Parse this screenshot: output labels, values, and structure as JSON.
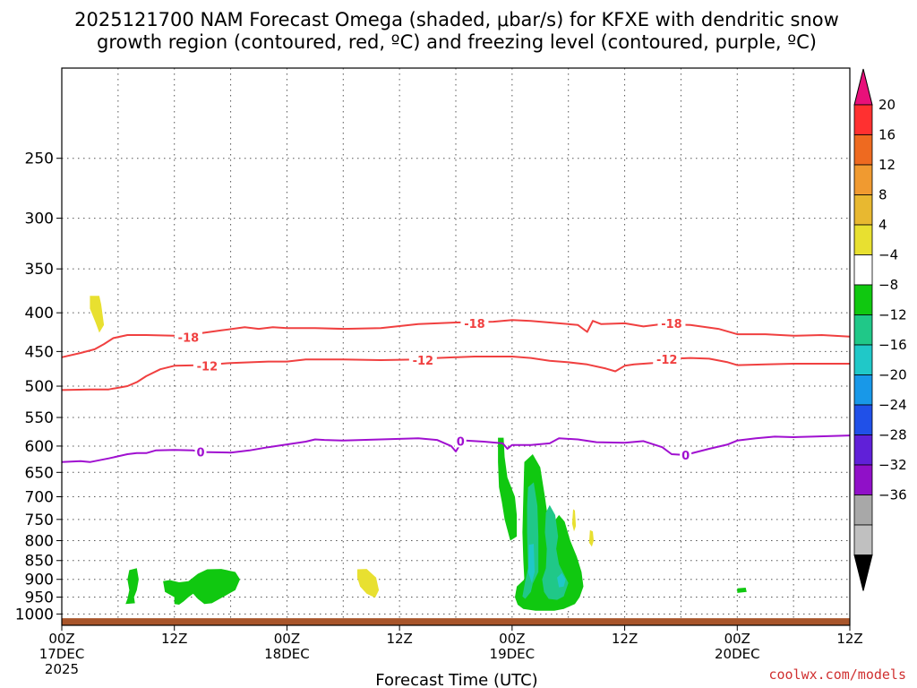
{
  "chart_data": {
    "type": "time-height contour",
    "title_line1": "2025121700 NAM Forecast Omega (shaded, μbar/s) for KFXE with dendritic snow",
    "title_line2": "growth region (contoured, red, ºC) and freezing level (contoured, purple, ºC)",
    "xlabel": "Forecast Time (UTC)",
    "credit": "coolwx.com/models",
    "x_range_hours": [
      0,
      84
    ],
    "y_range_hPa": [
      1035,
      190
    ],
    "y_ticks": [
      250,
      300,
      350,
      400,
      450,
      500,
      550,
      600,
      650,
      700,
      750,
      800,
      850,
      900,
      950,
      1000
    ],
    "x_ticks": [
      {
        "h": 0,
        "l1": "00Z",
        "l2": "17DEC",
        "l3": "2025"
      },
      {
        "h": 12,
        "l1": "12Z",
        "l2": "",
        "l3": ""
      },
      {
        "h": 24,
        "l1": "00Z",
        "l2": "18DEC",
        "l3": ""
      },
      {
        "h": 36,
        "l1": "12Z",
        "l2": "",
        "l3": ""
      },
      {
        "h": 48,
        "l1": "00Z",
        "l2": "19DEC",
        "l3": ""
      },
      {
        "h": 60,
        "l1": "12Z",
        "l2": "",
        "l3": ""
      },
      {
        "h": 72,
        "l1": "00Z",
        "l2": "20DEC",
        "l3": ""
      },
      {
        "h": 84,
        "l1": "12Z",
        "l2": "",
        "l3": ""
      }
    ],
    "colorbar": {
      "levels": [
        "20",
        "16",
        "12",
        "8",
        "4",
        "−4",
        "−8",
        "−12",
        "−16",
        "−20",
        "−24",
        "−28",
        "−32",
        "−36"
      ],
      "colors": [
        "#ff3030",
        "#ee6a20",
        "#f09a30",
        "#e8b830",
        "#e8e030",
        "#ffffff",
        "#10c810",
        "#20c888",
        "#20c8c8",
        "#1898e8",
        "#2050e8",
        "#6020d8",
        "#9010c8",
        "#a8a8a8",
        "#c0c0c0"
      ],
      "top_color": "#e8107a",
      "bottom_color": "#000000"
    },
    "series": [
      {
        "name": "-18",
        "color": "#f04040",
        "x": [
          0,
          2,
          3.5,
          4.5,
          5.5,
          7,
          9,
          12,
          14,
          17,
          19.5,
          21,
          22.5,
          24,
          27,
          30,
          34,
          38,
          42,
          46,
          48,
          50,
          53,
          55,
          56,
          56.6,
          57.5,
          60,
          62,
          64,
          67,
          70,
          72,
          75,
          78,
          81,
          84
        ],
        "y": [
          458,
          452,
          447,
          440,
          432,
          428,
          428,
          429,
          427,
          422,
          418,
          420,
          418,
          419,
          419,
          420,
          419,
          414,
          412,
          411,
          409,
          410,
          413,
          415,
          424,
          410,
          414,
          413,
          417,
          414,
          415,
          420,
          427,
          427,
          429,
          428,
          430
        ]
      },
      {
        "name": "-12",
        "color": "#f04040",
        "x": [
          0,
          3,
          5,
          7,
          8,
          9,
          10.5,
          12,
          15,
          18,
          22,
          24,
          26,
          30,
          34,
          38,
          40,
          44,
          48,
          50,
          52,
          54,
          56,
          58,
          59,
          60,
          61,
          63,
          65,
          67,
          69,
          71,
          72,
          75,
          78,
          81,
          84
        ],
        "y": [
          506,
          505,
          505,
          500,
          494,
          485,
          475,
          470,
          469,
          466,
          464,
          464,
          461,
          461,
          462,
          461,
          459,
          457,
          457,
          459,
          463,
          465,
          468,
          474,
          478,
          470,
          468,
          466,
          460,
          459,
          460,
          465,
          469,
          468,
          467,
          467,
          467
        ]
      },
      {
        "name": "0",
        "color": "#a010d0",
        "x": [
          0,
          2,
          3,
          5,
          7,
          8,
          9,
          10,
          12,
          14,
          15,
          18,
          20,
          22,
          24,
          26,
          27,
          28,
          30,
          34,
          38,
          40,
          41.5,
          42,
          42.5,
          43,
          45,
          47,
          47.5,
          48,
          50,
          52,
          53,
          55,
          57,
          60,
          62,
          64,
          65,
          66,
          67,
          69,
          71,
          72,
          74,
          76,
          78,
          80,
          82,
          84
        ],
        "y": [
          630,
          628,
          630,
          623,
          615,
          613,
          613,
          608,
          607,
          608,
          611,
          612,
          608,
          602,
          597,
          592,
          588,
          589,
          590,
          588,
          586,
          589,
          600,
          610,
          596,
          590,
          592,
          595,
          605,
          598,
          598,
          595,
          586,
          588,
          593,
          594,
          591,
          602,
          615,
          616,
          614,
          605,
          597,
          590,
          586,
          583,
          584,
          583,
          582,
          581
        ]
      }
    ],
    "contour_labels": [
      {
        "text": "-18",
        "x": 13.5,
        "y": 431,
        "color": "#f04040"
      },
      {
        "text": "-18",
        "x": 44,
        "y": 413,
        "color": "#f04040"
      },
      {
        "text": "-18",
        "x": 65,
        "y": 413,
        "color": "#f04040"
      },
      {
        "text": "-12",
        "x": 15.5,
        "y": 470,
        "color": "#f04040"
      },
      {
        "text": "-12",
        "x": 38.5,
        "y": 462,
        "color": "#f04040"
      },
      {
        "text": "-12",
        "x": 64.5,
        "y": 461,
        "color": "#f04040"
      },
      {
        "text": "0",
        "x": 14.8,
        "y": 611,
        "color": "#a010d0"
      },
      {
        "text": "0",
        "x": 42.5,
        "y": 591,
        "color": "#a010d0"
      },
      {
        "text": "0",
        "x": 66.5,
        "y": 617,
        "color": "#a010d0"
      }
    ],
    "omega_regions": [
      {
        "color": "#e8e030",
        "poly": [
          [
            3,
            380
          ],
          [
            4,
            380
          ],
          [
            4.2,
            390
          ],
          [
            4.5,
            415
          ],
          [
            4,
            425
          ],
          [
            3.6,
            412
          ],
          [
            3,
            395
          ]
        ]
      },
      {
        "color": "#e8e030",
        "poly": [
          [
            31.5,
            873
          ],
          [
            32.5,
            872
          ],
          [
            33.5,
            895
          ],
          [
            33.8,
            930
          ],
          [
            33.4,
            952
          ],
          [
            32.5,
            940
          ],
          [
            31.8,
            920
          ],
          [
            31.5,
            895
          ]
        ]
      },
      {
        "color": "#e8e030",
        "poly": [
          [
            54.5,
            727
          ],
          [
            54.7,
            730
          ],
          [
            54.8,
            765
          ],
          [
            54.6,
            778
          ],
          [
            54.4,
            760
          ]
        ]
      },
      {
        "color": "#e8e030",
        "poly": [
          [
            56.3,
            775
          ],
          [
            56.6,
            778
          ],
          [
            56.7,
            800
          ],
          [
            56.5,
            815
          ],
          [
            56.2,
            805
          ]
        ]
      },
      {
        "color": "#10c810",
        "poly": [
          [
            7.2,
            875
          ],
          [
            8,
            870
          ],
          [
            8.2,
            900
          ],
          [
            8,
            930
          ],
          [
            7.7,
            950
          ],
          [
            7.8,
            968
          ],
          [
            6.8,
            970
          ],
          [
            7,
            955
          ],
          [
            7.2,
            930
          ],
          [
            7,
            900
          ]
        ]
      },
      {
        "color": "#10c810",
        "poly": [
          [
            10.8,
            905
          ],
          [
            11.5,
            902
          ],
          [
            12.5,
            908
          ],
          [
            13.5,
            905
          ],
          [
            14.5,
            885
          ],
          [
            15.5,
            873
          ],
          [
            17,
            872
          ],
          [
            18.5,
            880
          ],
          [
            19,
            900
          ],
          [
            18.5,
            930
          ],
          [
            17.5,
            945
          ],
          [
            16,
            968
          ],
          [
            15.2,
            970
          ],
          [
            14.5,
            955
          ],
          [
            14,
            940
          ],
          [
            13.5,
            950
          ],
          [
            13,
            962
          ],
          [
            12.5,
            972
          ],
          [
            12,
            970
          ],
          [
            12,
            950
          ],
          [
            11,
            935
          ]
        ]
      },
      {
        "color": "#10c810",
        "poly": [
          [
            46.5,
            585
          ],
          [
            47.1,
            585
          ],
          [
            47.2,
            620
          ],
          [
            47.5,
            660
          ],
          [
            48.3,
            700
          ],
          [
            48.5,
            740
          ],
          [
            48.5,
            790
          ],
          [
            47.8,
            800
          ],
          [
            47.2,
            750
          ],
          [
            46.9,
            710
          ],
          [
            46.6,
            680
          ],
          [
            46.5,
            630
          ]
        ]
      },
      {
        "color": "#10c810",
        "poly": [
          [
            49.3,
            630
          ],
          [
            50.2,
            615
          ],
          [
            51,
            640
          ],
          [
            51.5,
            700
          ],
          [
            51.8,
            745
          ],
          [
            52.3,
            760
          ],
          [
            53,
            740
          ],
          [
            53.6,
            755
          ],
          [
            54.2,
            800
          ],
          [
            54.9,
            840
          ],
          [
            55.4,
            880
          ],
          [
            55.6,
            920
          ],
          [
            55.2,
            950
          ],
          [
            54.7,
            970
          ],
          [
            53.5,
            985
          ],
          [
            52.5,
            990
          ],
          [
            50.5,
            990
          ],
          [
            49.2,
            985
          ],
          [
            48.6,
            972
          ],
          [
            48.3,
            950
          ],
          [
            48.5,
            920
          ],
          [
            49.3,
            900
          ],
          [
            49.2,
            850
          ],
          [
            49.1,
            780
          ],
          [
            49.2,
            700
          ]
        ]
      },
      {
        "color": "#10c810",
        "poly": [
          [
            72,
            925
          ],
          [
            72.9,
            923
          ],
          [
            73,
            935
          ],
          [
            72,
            938
          ]
        ]
      },
      {
        "color": "#20c888",
        "poly": [
          [
            49.7,
            680
          ],
          [
            50.3,
            670
          ],
          [
            50.7,
            720
          ],
          [
            50.8,
            790
          ],
          [
            50.8,
            880
          ],
          [
            50.2,
            912
          ],
          [
            50,
            935
          ],
          [
            49.4,
            955
          ],
          [
            49.1,
            948
          ],
          [
            49.4,
            905
          ],
          [
            49.7,
            870
          ],
          [
            49.6,
            780
          ],
          [
            49.6,
            720
          ]
        ]
      },
      {
        "color": "#20c888",
        "poly": [
          [
            51.6,
            735
          ],
          [
            52,
            718
          ],
          [
            52.6,
            740
          ],
          [
            52.9,
            790
          ],
          [
            52.7,
            820
          ],
          [
            53,
            860
          ],
          [
            53.5,
            885
          ],
          [
            54,
            910
          ],
          [
            53.5,
            948
          ],
          [
            52.8,
            958
          ],
          [
            51.9,
            955
          ],
          [
            51.4,
            935
          ],
          [
            51.2,
            900
          ],
          [
            51.6,
            870
          ],
          [
            51.7,
            820
          ],
          [
            51.5,
            780
          ]
        ]
      },
      {
        "color": "#20c8c8",
        "poly": [
          [
            49.8,
            810
          ],
          [
            50.3,
            808
          ],
          [
            50.4,
            880
          ],
          [
            50.1,
            910
          ],
          [
            49.7,
            880
          ]
        ]
      },
      {
        "color": "#20c8c8",
        "poly": [
          [
            52.8,
            895
          ],
          [
            53.3,
            883
          ],
          [
            53.7,
            900
          ],
          [
            53.5,
            920
          ],
          [
            53,
            922
          ]
        ]
      }
    ],
    "ground": {
      "top_hPa": 1013,
      "color": "#a8552a"
    }
  }
}
